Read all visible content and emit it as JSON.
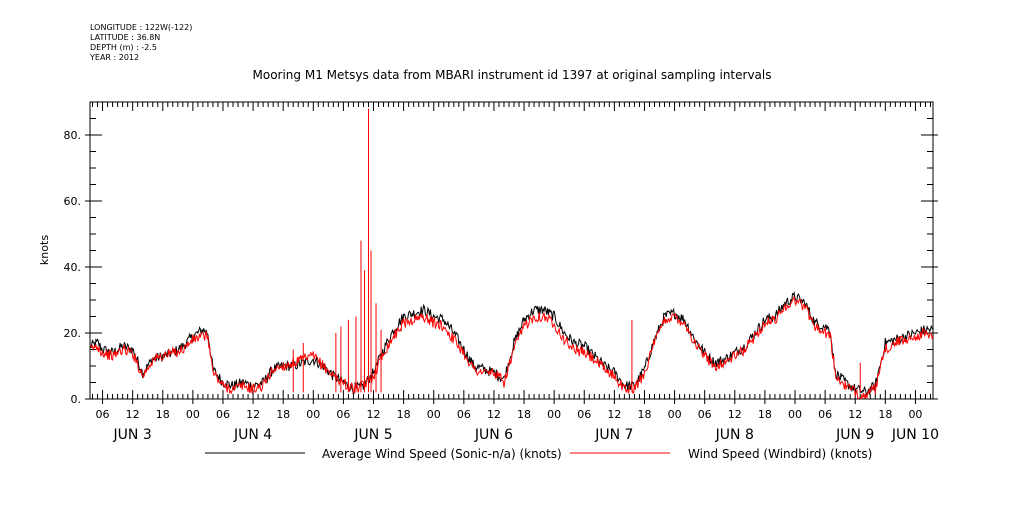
{
  "header": {
    "meta_lines": [
      "LONGITUDE : 122W(-122)",
      "LATITUDE : 36.8N",
      "DEPTH (m) : -2.5",
      "YEAR : 2012"
    ]
  },
  "chart_data": {
    "type": "line",
    "title": "Mooring M1 Metsys data from MBARI instrument id 1397 at original sampling intervals",
    "ylabel": "knots",
    "xlabel": "",
    "x_unit": "hours since Jun 3 2012 00:00",
    "xlim": [
      3.5,
      171.5
    ],
    "ylim": [
      0,
      90
    ],
    "y_ticks": [
      0,
      20,
      40,
      60,
      80
    ],
    "y_tick_labels": [
      "0.",
      "20.",
      "40.",
      "60.",
      "80."
    ],
    "x_major_ticks": [
      6,
      12,
      18,
      24,
      30,
      36,
      42,
      48,
      54,
      60,
      66,
      72,
      78,
      84,
      90,
      96,
      102,
      108,
      114,
      120,
      126,
      132,
      138,
      144,
      150,
      156,
      162,
      168
    ],
    "x_hour_labels": [
      "06",
      "12",
      "18",
      "00",
      "06",
      "12",
      "18",
      "00",
      "06",
      "12",
      "18",
      "00",
      "06",
      "12",
      "18",
      "00",
      "06",
      "12",
      "18",
      "00",
      "06",
      "12",
      "18",
      "00",
      "06",
      "12",
      "18",
      "00"
    ],
    "x_day_labels": [
      {
        "x": 12,
        "label": "JUN  3"
      },
      {
        "x": 36,
        "label": "JUN  4"
      },
      {
        "x": 60,
        "label": "JUN  5"
      },
      {
        "x": 84,
        "label": "JUN  6"
      },
      {
        "x": 108,
        "label": "JUN  7"
      },
      {
        "x": 132,
        "label": "JUN  8"
      },
      {
        "x": 156,
        "label": "JUN  9"
      },
      {
        "x": 168,
        "label": "JUN 10"
      }
    ],
    "grid": false,
    "legend_position": "bottom",
    "series": [
      {
        "name": "Average Wind Speed (Sonic-n/a) (knots)",
        "color": "#000000",
        "x": [
          3.5,
          5,
          6,
          8,
          10,
          12,
          14,
          16,
          18,
          20,
          22,
          24,
          26,
          27,
          28,
          30,
          32,
          34,
          36,
          38,
          40,
          42,
          44,
          46,
          48,
          50,
          52,
          54,
          56,
          58,
          60,
          62,
          64,
          66,
          68,
          70,
          72,
          74,
          76,
          78,
          80,
          82,
          84,
          86,
          88,
          90,
          92,
          94,
          96,
          98,
          100,
          102,
          104,
          106,
          108,
          110,
          112,
          114,
          116,
          118,
          120,
          122,
          124,
          126,
          128,
          130,
          132,
          134,
          136,
          138,
          140,
          142,
          144,
          146,
          148,
          150,
          151,
          152,
          154,
          156,
          158,
          160,
          162,
          164,
          166,
          168,
          170,
          171.5
        ],
        "y": [
          16,
          17,
          15,
          14,
          16,
          15,
          8,
          12,
          13,
          14,
          16,
          19,
          21,
          20,
          9,
          5,
          4,
          5,
          4,
          5,
          9,
          10,
          10,
          11,
          12,
          10,
          7,
          5,
          3,
          4,
          8,
          15,
          21,
          25,
          26,
          27,
          25,
          24,
          20,
          15,
          10,
          9,
          8,
          6,
          17,
          24,
          27,
          27,
          25,
          20,
          17,
          16,
          13,
          10,
          8,
          4,
          4,
          9,
          18,
          25,
          26,
          24,
          18,
          14,
          11,
          12,
          14,
          16,
          20,
          24,
          25,
          29,
          31,
          29,
          23,
          22,
          21,
          8,
          5,
          3,
          2,
          4,
          17,
          18,
          19,
          20,
          21,
          21
        ]
      },
      {
        "name": "Wind Speed (Windbird) (knots)",
        "color": "#ff0000",
        "x": [
          3.5,
          5,
          6,
          8,
          10,
          12,
          14,
          16,
          18,
          20,
          22,
          24,
          26,
          27,
          28,
          30,
          32,
          34,
          36,
          38,
          40,
          42,
          44,
          46,
          48,
          50,
          52,
          54,
          56,
          58,
          60,
          62,
          64,
          66,
          68,
          70,
          72,
          74,
          76,
          78,
          80,
          82,
          84,
          86,
          88,
          90,
          92,
          94,
          96,
          98,
          100,
          102,
          104,
          106,
          108,
          110,
          112,
          114,
          116,
          118,
          120,
          122,
          124,
          126,
          128,
          130,
          132,
          134,
          136,
          138,
          140,
          142,
          144,
          146,
          148,
          150,
          151,
          152,
          154,
          156,
          158,
          160,
          162,
          164,
          166,
          168,
          170,
          171.5
        ],
        "y": [
          15,
          16,
          14,
          13,
          15,
          14,
          7,
          12,
          13,
          14,
          15,
          18,
          19,
          19,
          8,
          4,
          3,
          4,
          3,
          4,
          9,
          10,
          11,
          12,
          13,
          10,
          7,
          5,
          3,
          4,
          7,
          14,
          19,
          23,
          24,
          25,
          23,
          22,
          18,
          14,
          9,
          8,
          8,
          5,
          15,
          22,
          25,
          25,
          23,
          18,
          15,
          14,
          12,
          9,
          7,
          3,
          3,
          8,
          17,
          24,
          25,
          23,
          17,
          13,
          10,
          11,
          13,
          15,
          19,
          23,
          24,
          28,
          30,
          28,
          22,
          20,
          20,
          7,
          4,
          2,
          1,
          3,
          15,
          17,
          18,
          19,
          20,
          19
        ],
        "spikes": [
          {
            "x": 52.5,
            "y": 20
          },
          {
            "x": 53.5,
            "y": 22
          },
          {
            "x": 55,
            "y": 24
          },
          {
            "x": 56.5,
            "y": 25
          },
          {
            "x": 57.5,
            "y": 48
          },
          {
            "x": 58.2,
            "y": 39
          },
          {
            "x": 59,
            "y": 88
          },
          {
            "x": 59.5,
            "y": 45
          },
          {
            "x": 60.5,
            "y": 29
          },
          {
            "x": 61.5,
            "y": 21
          },
          {
            "x": 111.5,
            "y": 24
          },
          {
            "x": 44,
            "y": 15
          },
          {
            "x": 46,
            "y": 17
          },
          {
            "x": 157,
            "y": 11
          }
        ]
      }
    ]
  }
}
